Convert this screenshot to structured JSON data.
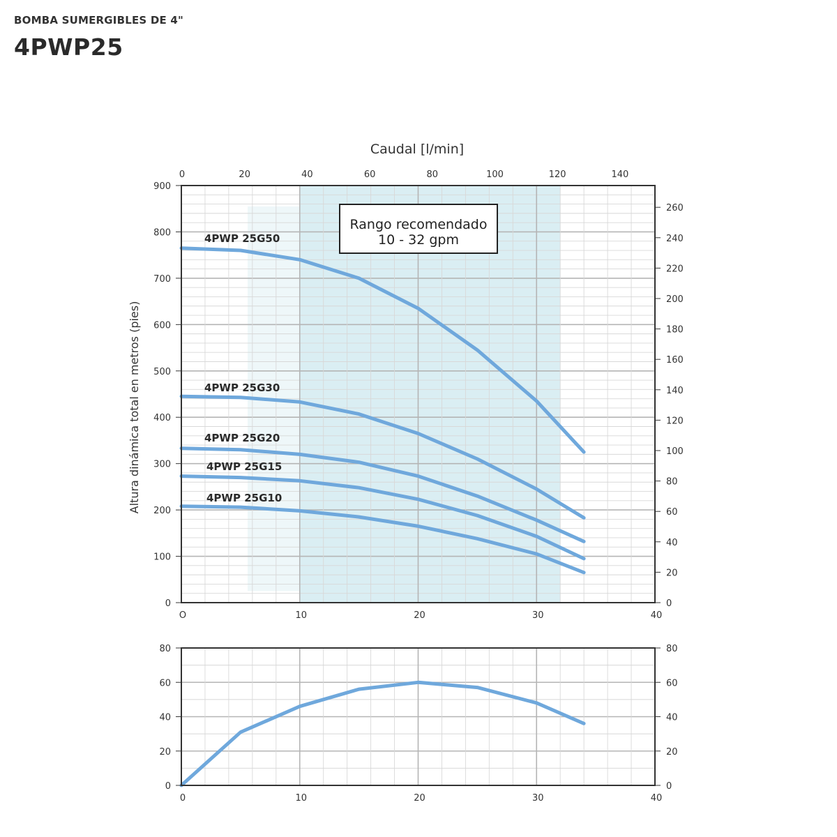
{
  "header": {
    "subtitle": "BOMBA SUMERGIBLES DE 4\"",
    "title": "4PWP25"
  },
  "colors": {
    "curve": "#6fa8dc",
    "band_recommended": "#d3ebf1",
    "band_light": "#eef7f9",
    "grid_major": "#b5b5b5",
    "grid_minor": "#d8d8d8",
    "frame": "#333333"
  },
  "chart_data": [
    {
      "type": "line",
      "x_unit": "gpm",
      "xlim": [
        0,
        40
      ],
      "x_ticks": [
        "O",
        "10",
        "20",
        "30",
        "40"
      ],
      "top_axis": {
        "label": "Caudal [l/min]",
        "ticks": [
          0,
          20,
          40,
          60,
          80,
          100,
          120,
          140
        ]
      },
      "ylabel": "Altura dinámica total en metros (pies)",
      "ylim": [
        0,
        900
      ],
      "y_ticks": [
        0,
        100,
        200,
        300,
        400,
        500,
        600,
        700,
        800,
        900
      ],
      "right_axis": {
        "ticks": [
          0,
          20,
          40,
          60,
          80,
          100,
          120,
          140,
          160,
          180,
          200,
          220,
          240,
          260
        ]
      },
      "annotation": {
        "line1": "Rango recomendado",
        "line2": "10 - 32 gpm"
      },
      "recommended_range_gpm": [
        10,
        32
      ],
      "grid": true,
      "series": [
        {
          "name": "4PWP 25G50",
          "x": [
            0,
            5,
            10,
            15,
            20,
            25,
            30,
            34
          ],
          "y": [
            765,
            760,
            740,
            700,
            635,
            545,
            435,
            325
          ]
        },
        {
          "name": "4PWP 25G30",
          "x": [
            0,
            5,
            10,
            15,
            20,
            25,
            30,
            34
          ],
          "y": [
            445,
            443,
            433,
            407,
            365,
            310,
            245,
            183
          ]
        },
        {
          "name": "4PWP 25G20",
          "x": [
            0,
            5,
            10,
            15,
            20,
            25,
            30,
            34
          ],
          "y": [
            333,
            330,
            320,
            303,
            273,
            230,
            178,
            132
          ]
        },
        {
          "name": "4PWP 25G15",
          "x": [
            0,
            5,
            10,
            15,
            20,
            25,
            30,
            34
          ],
          "y": [
            273,
            270,
            263,
            248,
            223,
            188,
            143,
            95
          ]
        },
        {
          "name": "4PWP 25G10",
          "x": [
            0,
            5,
            10,
            15,
            20,
            25,
            30,
            34
          ],
          "y": [
            208,
            206,
            198,
            185,
            165,
            138,
            105,
            65
          ]
        }
      ]
    },
    {
      "type": "line",
      "xlim": [
        0,
        40
      ],
      "x_ticks": [
        "0",
        "10",
        "20",
        "30",
        "40"
      ],
      "ylim": [
        0,
        80
      ],
      "y_ticks": [
        0,
        20,
        40,
        60,
        80
      ],
      "right_ticks": [
        0,
        20,
        40,
        60,
        80
      ],
      "grid": true,
      "series": [
        {
          "x": [
            0,
            5,
            10,
            15,
            20,
            25,
            30,
            34
          ],
          "y": [
            0,
            31,
            46,
            56,
            60,
            57,
            48,
            36
          ]
        }
      ]
    }
  ]
}
